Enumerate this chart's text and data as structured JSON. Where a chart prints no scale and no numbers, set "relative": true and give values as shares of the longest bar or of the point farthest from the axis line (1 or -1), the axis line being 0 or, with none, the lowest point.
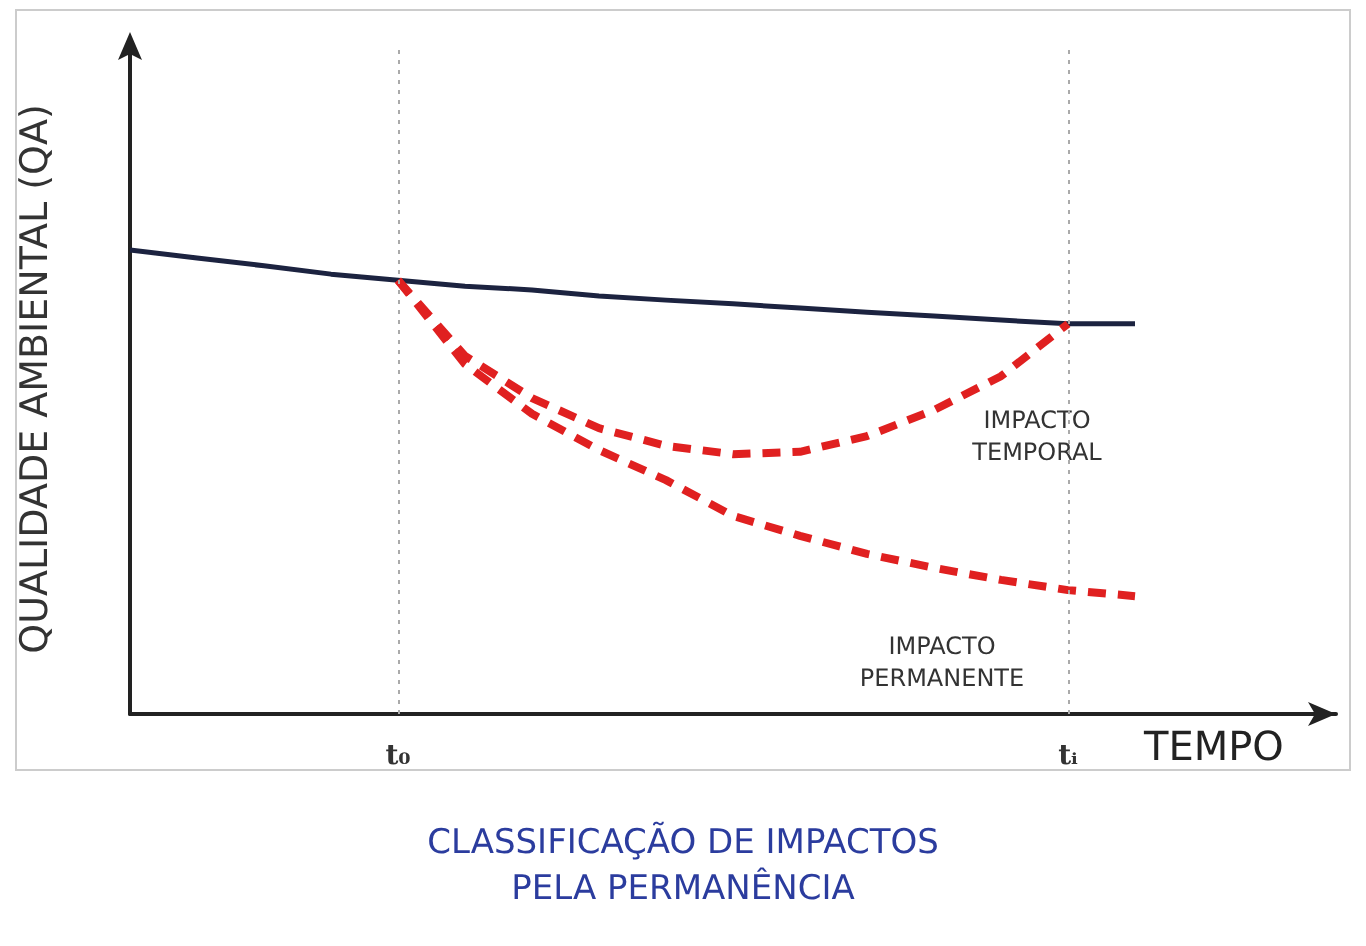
{
  "chart_data": {
    "type": "line",
    "relative": true,
    "title": "CLASSIFICAÇÃO DE IMPACTOS\nPELA PERMANÊNCIA",
    "xlabel": "TEMPO",
    "ylabel": "QUALIDADE AMBIENTAL (QA)",
    "categories": [
      null,
      null,
      null,
      null,
      "t₀",
      null,
      null,
      null,
      null,
      null,
      null,
      null,
      null,
      null,
      "tᵢ",
      null,
      null,
      null,
      null
    ],
    "series": [
      {
        "color": "#1c2340",
        "line_style": "solid",
        "values": [
          1.0,
          0.983,
          0.966,
          0.948,
          0.935,
          0.922,
          0.914,
          0.901,
          0.892,
          0.884,
          0.875,
          0.866,
          0.858,
          0.849,
          0.841,
          0.841,
          null,
          null,
          null
        ]
      },
      {
        "name": "IMPACTO\nTEMPORAL",
        "color": "#e02020",
        "line_style": "dashed",
        "values": [
          null,
          null,
          null,
          null,
          0.935,
          0.772,
          0.681,
          0.616,
          0.578,
          0.56,
          0.565,
          0.599,
          0.655,
          0.728,
          0.841,
          null,
          null,
          null,
          null
        ]
      },
      {
        "name": "IMPACTO\nPERMANENTE",
        "color": "#e02020",
        "line_style": "dashed",
        "values": [
          null,
          null,
          null,
          null,
          0.935,
          0.754,
          0.647,
          0.569,
          0.504,
          0.427,
          0.384,
          0.345,
          0.315,
          0.289,
          0.267,
          0.254,
          null,
          null,
          null
        ]
      }
    ],
    "ref_lines": [
      {
        "axis": "x",
        "value": "t₀",
        "color": "#aaaaaa",
        "line_style": "dotted"
      },
      {
        "axis": "x",
        "value": "tᵢ",
        "color": "#aaaaaa",
        "line_style": "dotted"
      }
    ],
    "marker": "none",
    "legend": false,
    "grid": false
  }
}
